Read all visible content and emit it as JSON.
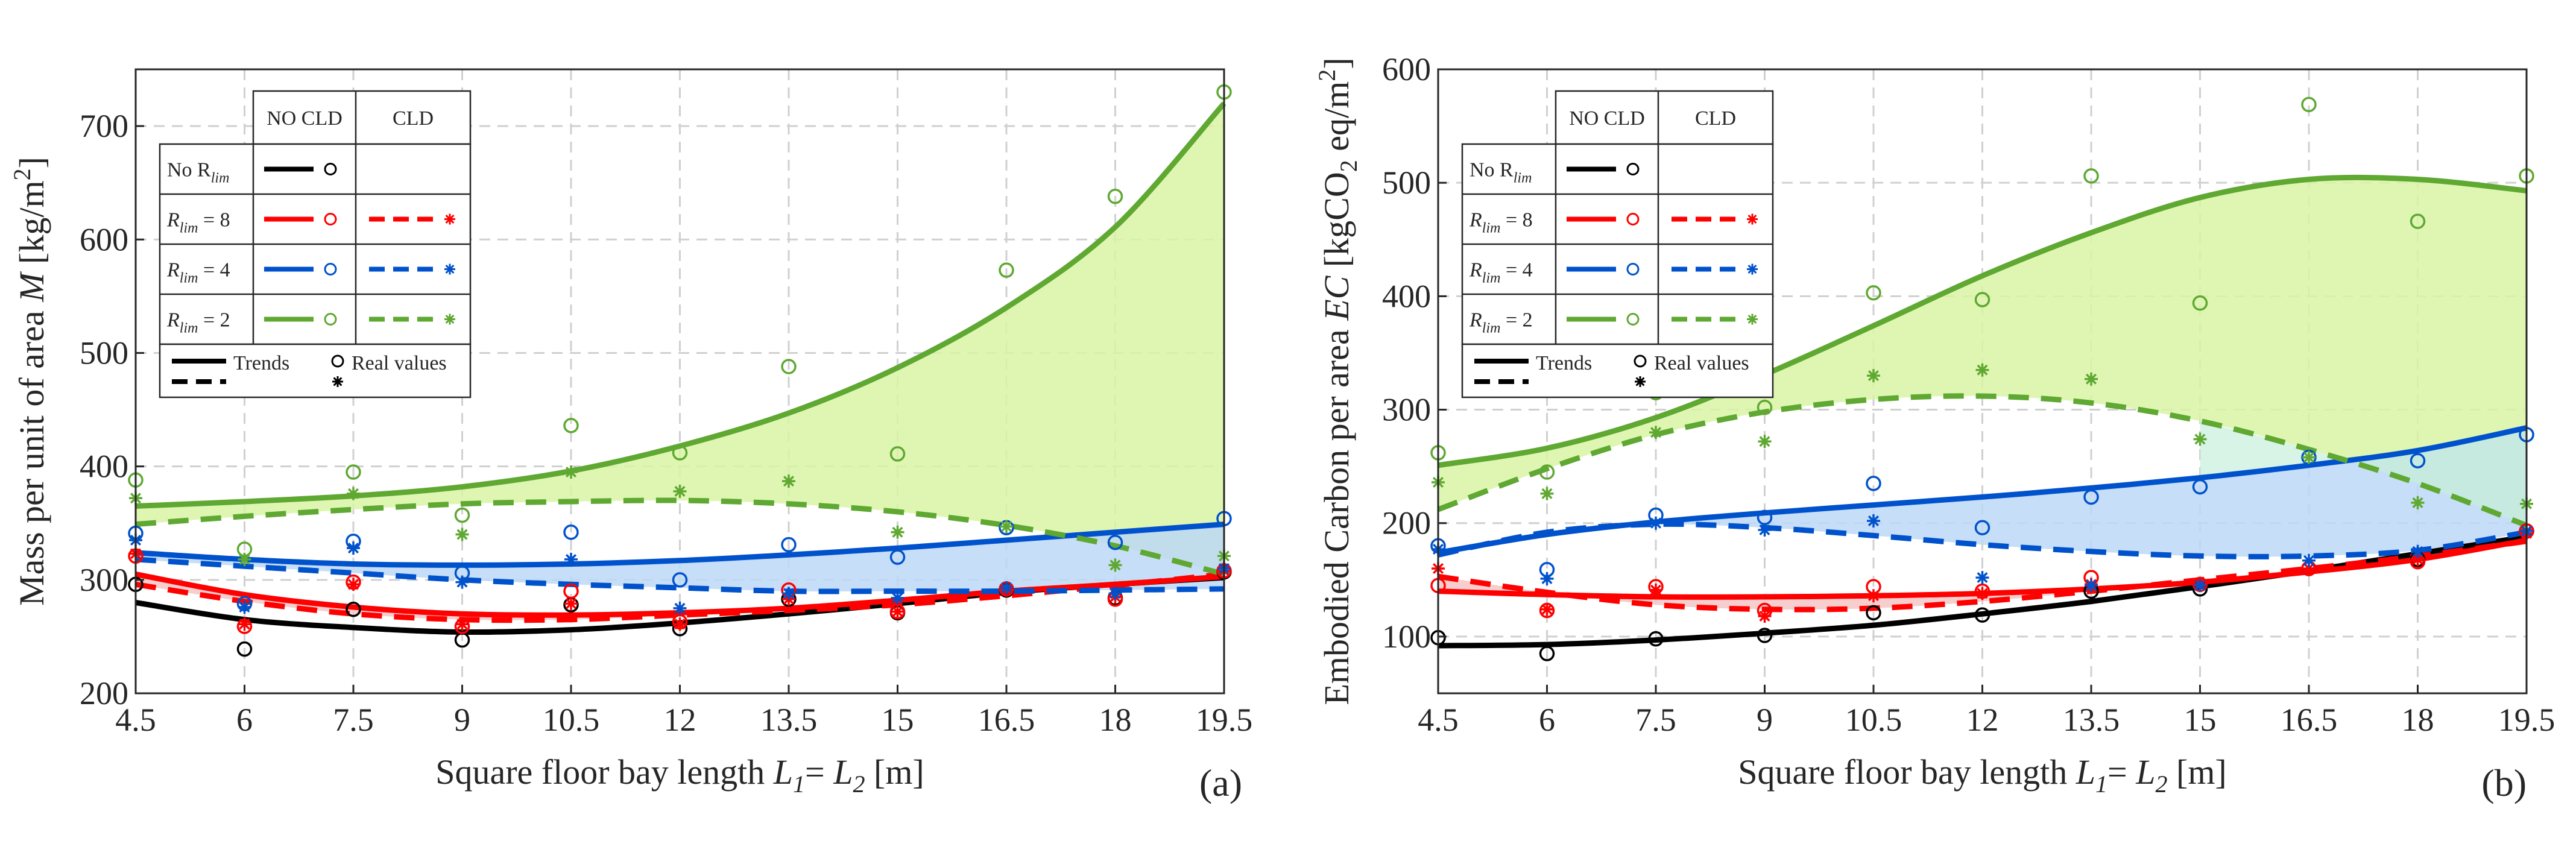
{
  "colors": {
    "black": "#000000",
    "red": "#ff0000",
    "blue": "#0052cc",
    "green": "#5fa832",
    "fill_green": "#d9f4a6",
    "fill_blue": "#bcd8f6",
    "fill_red": "#f6c6c6",
    "fill_mint": "#c8f0dc"
  },
  "chart_data": [
    {
      "type": "scatter",
      "panel": "(a)",
      "title": "",
      "xlabel_prefix": "Square floor bay length",
      "xlabel_L1": "L",
      "xlabel_sub1": "1",
      "xlabel_eq": "=",
      "xlabel_L2": "L",
      "xlabel_sub2": "2",
      "xlabel_unit": "[m]",
      "ylabel_main": "Mass per unit of area",
      "ylabel_var": "M",
      "ylabel_unit_open": "[kg/m",
      "ylabel_sup": "2",
      "ylabel_unit_close": "]",
      "xlim": [
        4.5,
        19.5
      ],
      "ylim": [
        200,
        750
      ],
      "xticks": [
        4.5,
        6,
        7.5,
        9,
        10.5,
        12,
        13.5,
        15,
        16.5,
        18,
        19.5
      ],
      "xtick_labels": [
        "4.5",
        "6",
        "7.5",
        "9",
        "10.5",
        "12",
        "13.5",
        "15",
        "16.5",
        "18",
        "19.5"
      ],
      "yticks": [
        200,
        300,
        400,
        500,
        600,
        700
      ],
      "ytick_labels": [
        "200",
        "300",
        "400",
        "500",
        "600",
        "700"
      ],
      "x": [
        4.5,
        6,
        7.5,
        9,
        10.5,
        12,
        13.5,
        15,
        16.5,
        18,
        19.5
      ],
      "series": [
        {
          "name": "No Rlim, NO CLD, real",
          "color": "black",
          "marker": "circle",
          "values": [
            296,
            239,
            274,
            247,
            278,
            257,
            283,
            271,
            291,
            284,
            307
          ]
        },
        {
          "name": "Rlim=8, NO CLD, real",
          "color": "red",
          "marker": "circle",
          "values": [
            321,
            259,
            298,
            259,
            290,
            263,
            291,
            272,
            292,
            283,
            308
          ]
        },
        {
          "name": "Rlim=8, CLD, real",
          "color": "red",
          "marker": "star",
          "values": [
            323,
            261,
            296,
            261,
            279,
            261,
            283,
            272,
            291,
            285,
            308
          ]
        },
        {
          "name": "Rlim=4, NO CLD, real",
          "color": "blue",
          "marker": "circle",
          "values": [
            341,
            279,
            334,
            306,
            342,
            300,
            331,
            320,
            346,
            333,
            354
          ]
        },
        {
          "name": "Rlim=4, CLD, real",
          "color": "blue",
          "marker": "star",
          "values": [
            335,
            276,
            328,
            298,
            318,
            275,
            288,
            284,
            293,
            288,
            310
          ]
        },
        {
          "name": "Rlim=2, NO CLD, real",
          "color": "green",
          "marker": "circle",
          "values": [
            388,
            327,
            395,
            357,
            436,
            412,
            488,
            411,
            573,
            638,
            730
          ]
        },
        {
          "name": "Rlim=2, CLD, real",
          "color": "green",
          "marker": "star",
          "values": [
            372,
            318,
            376,
            340,
            395,
            378,
            387,
            342,
            347,
            313,
            321
          ]
        }
      ],
      "trends": [
        {
          "name": "No Rlim trend",
          "color": "black",
          "dash": false,
          "values": [
            280,
            265,
            258,
            254,
            256,
            262,
            270,
            279,
            289,
            296,
            302
          ]
        },
        {
          "name": "Rlim=8 NO CLD trend",
          "color": "red",
          "dash": false,
          "values": [
            305,
            287,
            276,
            270,
            269,
            271,
            275,
            282,
            290,
            296,
            303
          ]
        },
        {
          "name": "Rlim=8 CLD trend",
          "color": "red",
          "dash": true,
          "values": [
            296,
            281,
            270,
            265,
            265,
            269,
            273,
            278,
            286,
            295,
            305
          ]
        },
        {
          "name": "Rlim=4 NO CLD trend",
          "color": "blue",
          "dash": false,
          "values": [
            324,
            318,
            314,
            313,
            314,
            317,
            322,
            328,
            335,
            342,
            349
          ]
        },
        {
          "name": "Rlim=4 CLD trend",
          "color": "blue",
          "dash": true,
          "values": [
            318,
            312,
            306,
            300,
            296,
            293,
            290,
            290,
            290,
            291,
            292
          ]
        },
        {
          "name": "Rlim=2 NO CLD trend",
          "color": "green",
          "dash": false,
          "values": [
            365,
            369,
            374,
            382,
            396,
            418,
            447,
            487,
            540,
            611,
            720
          ]
        },
        {
          "name": "Rlim=2 CLD trend",
          "color": "green",
          "dash": true,
          "values": [
            349,
            356,
            362,
            367,
            369,
            370,
            367,
            360,
            348,
            330,
            305
          ]
        }
      ],
      "legend": {
        "header_nocld": "NO CLD",
        "header_cld": "CLD",
        "row1": "No R",
        "row_r": "R",
        "sub": "lim",
        "eq8": "= 8",
        "eq4": "= 4",
        "eq2": "= 2",
        "trends_label": "Trends",
        "real_label": "Real values",
        "placement": "top-left"
      }
    },
    {
      "type": "scatter",
      "panel": "(b)",
      "title": "",
      "xlabel_prefix": "Square floor bay length",
      "xlabel_L1": "L",
      "xlabel_sub1": "1",
      "xlabel_eq": "=",
      "xlabel_L2": "L",
      "xlabel_sub2": "2",
      "xlabel_unit": "[m]",
      "ylabel_main": "Embodied Carbon per area",
      "ylabel_var": "EC",
      "ylabel_unit_open": "[kgCO",
      "ylabel_sub": "2",
      "ylabel_unit_mid": " eq/m",
      "ylabel_sup": "2",
      "ylabel_unit_close": "]",
      "xlim": [
        4.5,
        19.5
      ],
      "ylim": [
        50,
        600
      ],
      "xticks": [
        4.5,
        6,
        7.5,
        9,
        10.5,
        12,
        13.5,
        15,
        16.5,
        18,
        19.5
      ],
      "xtick_labels": [
        "4.5",
        "6",
        "7.5",
        "9",
        "10.5",
        "12",
        "13.5",
        "15",
        "16.5",
        "18",
        "19.5"
      ],
      "yticks": [
        100,
        200,
        300,
        400,
        500,
        600
      ],
      "ytick_labels": [
        "100",
        "200",
        "300",
        "400",
        "500",
        "600"
      ],
      "x": [
        4.5,
        6,
        7.5,
        9,
        10.5,
        12,
        13.5,
        15,
        16.5,
        18,
        19.5
      ],
      "series": [
        {
          "name": "No Rlim, NO CLD, real",
          "color": "black",
          "marker": "circle",
          "values": [
            99,
            85,
            98,
            101,
            121,
            119,
            140,
            142,
            160,
            168,
            193
          ]
        },
        {
          "name": "Rlim=8, NO CLD, real",
          "color": "red",
          "marker": "circle",
          "values": [
            145,
            123,
            144,
            123,
            144,
            140,
            152,
            146,
            160,
            166,
            193
          ]
        },
        {
          "name": "Rlim=8, CLD, real",
          "color": "red",
          "marker": "star",
          "values": [
            160,
            124,
            141,
            118,
            136,
            138,
            146,
            146,
            160,
            168,
            191
          ]
        },
        {
          "name": "Rlim=4, NO CLD, real",
          "color": "blue",
          "marker": "circle",
          "values": [
            180,
            159,
            207,
            205,
            235,
            196,
            223,
            232,
            258,
            255,
            278
          ]
        },
        {
          "name": "Rlim=4, CLD, real",
          "color": "blue",
          "marker": "star",
          "values": [
            177,
            151,
            200,
            194,
            202,
            152,
            145,
            145,
            167,
            175,
            193
          ]
        },
        {
          "name": "Rlim=2, NO CLD, real",
          "color": "green",
          "marker": "circle",
          "values": [
            262,
            245,
            315,
            302,
            403,
            397,
            506,
            394,
            569,
            466,
            506
          ]
        },
        {
          "name": "Rlim=2, CLD, real",
          "color": "green",
          "marker": "star",
          "values": [
            236,
            226,
            280,
            272,
            330,
            335,
            327,
            274,
            258,
            218,
            217
          ]
        }
      ],
      "trends": [
        {
          "name": "No Rlim trend",
          "color": "black",
          "dash": false,
          "values": [
            92,
            93,
            97,
            103,
            110,
            120,
            131,
            144,
            158,
            173,
            188
          ]
        },
        {
          "name": "Rlim=8 NO CLD trend",
          "color": "red",
          "dash": false,
          "values": [
            140,
            137,
            135,
            135,
            136,
            138,
            142,
            148,
            157,
            168,
            185
          ]
        },
        {
          "name": "Rlim=8 CLD trend",
          "color": "red",
          "dash": true,
          "values": [
            153,
            139,
            128,
            124,
            125,
            131,
            140,
            150,
            160,
            171,
            184
          ]
        },
        {
          "name": "Rlim=4 NO CLD trend",
          "color": "blue",
          "dash": false,
          "values": [
            174,
            190,
            201,
            209,
            216,
            223,
            231,
            240,
            251,
            264,
            284
          ]
        },
        {
          "name": "Rlim=4 CLD trend",
          "color": "blue",
          "dash": true,
          "values": [
            172,
            192,
            199,
            196,
            189,
            181,
            175,
            171,
            171,
            176,
            192
          ]
        },
        {
          "name": "Rlim=2 NO CLD trend",
          "color": "green",
          "dash": false,
          "values": [
            251,
            266,
            293,
            331,
            374,
            418,
            456,
            487,
            503,
            503,
            493
          ]
        },
        {
          "name": "Rlim=2 CLD trend",
          "color": "green",
          "dash": true,
          "values": [
            212,
            248,
            278,
            298,
            309,
            312,
            306,
            290,
            265,
            235,
            198
          ]
        }
      ],
      "legend": {
        "header_nocld": "NO CLD",
        "header_cld": "CLD",
        "row1": "No R",
        "row_r": "R",
        "sub": "lim",
        "eq8": "= 8",
        "eq4": "= 4",
        "eq2": "= 2",
        "trends_label": "Trends",
        "real_label": "Real values",
        "placement": "top-left"
      }
    }
  ]
}
